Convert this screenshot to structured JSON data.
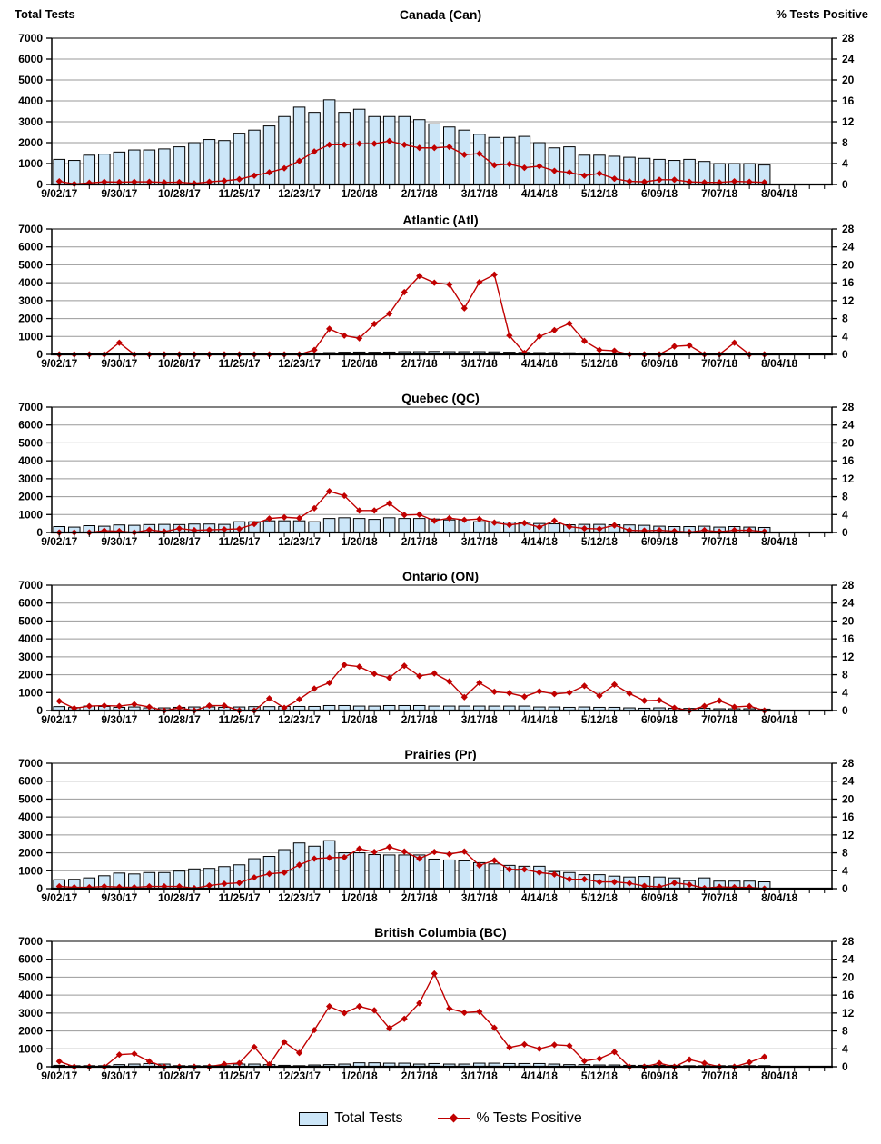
{
  "page": {
    "left_axis_header": "Total Tests",
    "right_axis_header": "% Tests Positive"
  },
  "legend": {
    "total_tests": "Total Tests",
    "pct_positive": "% Tests Positive"
  },
  "colors": {
    "bar_fill": "#CCE6F8",
    "bar_stroke": "#000000",
    "line": "#C00000",
    "grid": "#999999",
    "axis": "#000000"
  },
  "axes": {
    "x_tick_labels": [
      "9/02/17",
      "9/30/17",
      "10/28/17",
      "11/25/17",
      "12/23/17",
      "1/20/18",
      "2/17/18",
      "3/17/18",
      "4/14/18",
      "5/12/18",
      "6/09/18",
      "7/07/18",
      "8/04/18"
    ],
    "weeks_total": 52,
    "data_weeks": 48,
    "left_ticks": [
      0,
      1000,
      2000,
      3000,
      4000,
      5000,
      6000,
      7000
    ],
    "right_ticks": [
      0,
      4,
      8,
      12,
      16,
      20,
      24,
      28
    ],
    "left_max": 7000,
    "right_max": 28
  },
  "chart_data": [
    {
      "type": "bar",
      "title": "Canada (Can)",
      "region_code": "Can",
      "bar_series": "Total Tests",
      "line_series": "% Tests Positive",
      "bars_total_tests": [
        1200,
        1150,
        1400,
        1450,
        1550,
        1650,
        1650,
        1700,
        1800,
        2000,
        2150,
        2100,
        2450,
        2600,
        2800,
        3250,
        3700,
        3450,
        4050,
        3450,
        3600,
        3250,
        3250,
        3250,
        3100,
        2900,
        2750,
        2600,
        2400,
        2250,
        2250,
        2300,
        2000,
        1750,
        1800,
        1400,
        1400,
        1350,
        1300,
        1250,
        1200,
        1150,
        1200,
        1100,
        1000,
        1000,
        1000,
        930
      ],
      "line_pct_positive": [
        0.6,
        0.1,
        0.3,
        0.5,
        0.45,
        0.5,
        0.5,
        0.4,
        0.45,
        0.2,
        0.5,
        0.7,
        1.0,
        1.7,
        2.3,
        3.1,
        4.5,
        6.3,
        7.6,
        7.6,
        7.8,
        7.8,
        8.3,
        7.6,
        7.0,
        7.0,
        7.2,
        5.7,
        5.9,
        3.7,
        3.9,
        3.2,
        3.5,
        2.6,
        2.3,
        1.7,
        2.1,
        1.1,
        0.6,
        0.5,
        0.9,
        0.9,
        0.5,
        0.4,
        0.4,
        0.6,
        0.5,
        0.4
      ]
    },
    {
      "type": "bar",
      "title": "Atlantic (Atl)",
      "region_code": "Atl",
      "bar_series": "Total Tests",
      "line_series": "% Tests Positive",
      "bars_total_tests": [
        30,
        30,
        40,
        40,
        40,
        30,
        30,
        30,
        40,
        40,
        40,
        40,
        50,
        50,
        50,
        50,
        60,
        80,
        100,
        120,
        130,
        120,
        130,
        150,
        150,
        160,
        150,
        150,
        150,
        140,
        120,
        110,
        100,
        100,
        90,
        80,
        70,
        60,
        50,
        50,
        40,
        40,
        40,
        30,
        30,
        30,
        20,
        20
      ],
      "line_pct_positive": [
        0,
        0,
        0,
        0,
        2.6,
        0,
        0,
        0,
        0,
        0,
        0,
        0,
        0,
        0,
        0,
        0,
        0,
        1.0,
        5.7,
        4.2,
        3.6,
        6.8,
        9.1,
        13.9,
        17.5,
        16.0,
        15.6,
        10.3,
        16.1,
        17.8,
        4.2,
        0.3,
        4.0,
        5.4,
        6.9,
        3.0,
        1.0,
        0.8,
        0,
        0,
        0,
        1.8,
        2.0,
        0,
        0,
        2.6,
        0,
        0
      ]
    },
    {
      "type": "bar",
      "title": "Quebec (QC)",
      "region_code": "QC",
      "bar_series": "Total Tests",
      "line_series": "% Tests Positive",
      "bars_total_tests": [
        330,
        300,
        380,
        350,
        420,
        400,
        440,
        450,
        440,
        470,
        470,
        450,
        600,
        600,
        650,
        650,
        650,
        600,
        780,
        820,
        780,
        730,
        820,
        780,
        780,
        750,
        700,
        700,
        600,
        600,
        580,
        560,
        500,
        480,
        430,
        450,
        450,
        430,
        420,
        400,
        350,
        330,
        330,
        350,
        300,
        330,
        300,
        280
      ],
      "line_pct_positive": [
        0,
        0,
        0,
        0.4,
        0.3,
        0,
        0.6,
        0.2,
        0.9,
        0.5,
        0.6,
        0.7,
        0.8,
        1.9,
        3.1,
        3.4,
        3.2,
        5.4,
        9.2,
        8.2,
        4.9,
        4.9,
        6.5,
        3.9,
        4.0,
        2.6,
        3.2,
        2.8,
        3.0,
        2.2,
        1.7,
        2.1,
        1.2,
        2.6,
        1.3,
        0.9,
        0.8,
        1.6,
        0.5,
        0.4,
        0.5,
        0.3,
        0.1,
        0.5,
        0.2,
        0.5,
        0.5,
        0.2
      ]
    },
    {
      "type": "bar",
      "title": "Ontario (ON)",
      "region_code": "ON",
      "bar_series": "Total Tests",
      "line_series": "% Tests Positive",
      "bars_total_tests": [
        220,
        170,
        250,
        230,
        180,
        200,
        150,
        150,
        180,
        200,
        200,
        180,
        200,
        220,
        220,
        230,
        230,
        230,
        280,
        280,
        250,
        250,
        280,
        280,
        280,
        250,
        250,
        250,
        250,
        250,
        250,
        250,
        200,
        200,
        180,
        200,
        180,
        180,
        150,
        130,
        150,
        130,
        120,
        130,
        100,
        100,
        100,
        80
      ],
      "line_pct_positive": [
        2.1,
        0.5,
        1.0,
        1.1,
        1.0,
        1.4,
        0.8,
        0,
        0.6,
        0,
        1.1,
        1.1,
        0,
        0,
        2.7,
        0.6,
        2.5,
        4.9,
        6.2,
        10.2,
        9.8,
        8.2,
        7.3,
        10.0,
        7.7,
        8.3,
        6.5,
        3.0,
        6.2,
        4.2,
        3.9,
        3.1,
        4.3,
        3.7,
        4.0,
        5.5,
        3.3,
        5.8,
        3.8,
        2.2,
        2.3,
        0.6,
        0,
        1.0,
        2.2,
        0.8,
        1.0,
        0
      ]
    },
    {
      "type": "bar",
      "title": "Prairies (Pr)",
      "region_code": "Pr",
      "bar_series": "Total Tests",
      "line_series": "% Tests Positive",
      "bars_total_tests": [
        500,
        520,
        600,
        720,
        870,
        820,
        900,
        900,
        980,
        1100,
        1130,
        1230,
        1330,
        1670,
        1800,
        2180,
        2550,
        2370,
        2680,
        2000,
        2000,
        1900,
        1880,
        1880,
        1880,
        1650,
        1600,
        1550,
        1450,
        1380,
        1300,
        1250,
        1250,
        950,
        900,
        780,
        780,
        700,
        650,
        680,
        650,
        600,
        450,
        600,
        420,
        420,
        420,
        380
      ],
      "line_pct_positive": [
        0.5,
        0.3,
        0.3,
        0.5,
        0.35,
        0.3,
        0.5,
        0.5,
        0.5,
        0.1,
        0.7,
        1.1,
        1.3,
        2.5,
        3.3,
        3.6,
        5.3,
        6.7,
        6.9,
        7.0,
        8.9,
        8.2,
        9.3,
        8.3,
        6.7,
        8.2,
        7.7,
        8.3,
        5.2,
        6.3,
        4.3,
        4.3,
        3.6,
        3.2,
        2.1,
        2.1,
        1.5,
        1.5,
        1.2,
        0.6,
        0.4,
        1.3,
        0.9,
        0.1,
        0.4,
        0.3,
        0.3,
        0
      ]
    },
    {
      "type": "bar",
      "title": "British Columbia (BC)",
      "region_code": "BC",
      "bar_series": "Total Tests",
      "line_series": "% Tests Positive",
      "bars_total_tests": [
        80,
        60,
        60,
        60,
        120,
        150,
        180,
        150,
        60,
        60,
        60,
        60,
        150,
        150,
        120,
        80,
        60,
        100,
        120,
        150,
        220,
        220,
        200,
        200,
        150,
        180,
        150,
        150,
        200,
        200,
        180,
        180,
        180,
        150,
        120,
        120,
        100,
        100,
        80,
        80,
        80,
        80,
        60,
        60,
        60,
        60,
        60,
        60
      ],
      "line_pct_positive": [
        1.2,
        0,
        0,
        0,
        2.7,
        2.9,
        1.2,
        0,
        0,
        0,
        0,
        0.6,
        0.8,
        4.4,
        0.5,
        5.5,
        3.1,
        8.2,
        13.5,
        12.0,
        13.5,
        12.6,
        8.6,
        10.7,
        14.2,
        20.8,
        13.0,
        12.1,
        12.3,
        8.7,
        4.3,
        5.0,
        4.0,
        4.9,
        4.7,
        1.3,
        1.8,
        3.3,
        0,
        0,
        0.8,
        0,
        1.6,
        0.8,
        0,
        0,
        1.0,
        2.2
      ]
    }
  ]
}
